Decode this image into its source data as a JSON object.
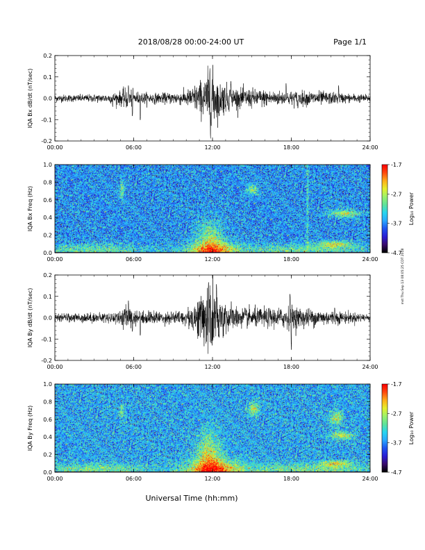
{
  "header": {
    "title": "2018/08/28  00:00-24:00 UT",
    "page": "Page 1/1"
  },
  "footer": {
    "xlabel": "Universal Time (hh:mm)",
    "side_note": "mst Thu Sep 13 08:05:25 CDT 2018"
  },
  "colors": {
    "trace": "#000000",
    "frame": "#000000",
    "colormap": [
      "#000000",
      "#3a0a6e",
      "#2a1fd6",
      "#1f55f0",
      "#2aa9ff",
      "#29d6ef",
      "#5fe39a",
      "#9cf26b",
      "#e6f02c",
      "#ffae1a",
      "#ff4a10",
      "#ff0000"
    ]
  },
  "chart_data": [
    {
      "type": "line",
      "name": "bx-dbdt",
      "ylabel": "IQA Bx dB/dt (nT/sec)",
      "xlim": [
        0,
        24
      ],
      "ylim": [
        -0.2,
        0.2
      ],
      "yticks": [
        -0.2,
        -0.1,
        0.0,
        0.1,
        0.2
      ],
      "ytick_labels": [
        "-0.2",
        "-0.1",
        "0.0",
        "0.1",
        "0.2"
      ],
      "xticks": [
        0,
        6,
        12,
        18,
        24
      ],
      "xtick_labels": [
        "00:00",
        "06:00",
        "12:00",
        "18:00",
        "24:00"
      ],
      "envelope": {
        "x": [
          0,
          2,
          4,
          5,
          5.5,
          6,
          6.5,
          8,
          10,
          10.5,
          11,
          11.5,
          11.8,
          12,
          12.5,
          13,
          14,
          15,
          16,
          17,
          18,
          19,
          20,
          21,
          22,
          24
        ],
        "y": [
          0.015,
          0.015,
          0.018,
          0.03,
          0.045,
          0.03,
          0.025,
          0.02,
          0.03,
          0.05,
          0.07,
          0.09,
          0.14,
          0.12,
          0.08,
          0.06,
          0.04,
          0.04,
          0.035,
          0.03,
          0.03,
          0.03,
          0.03,
          0.025,
          0.02,
          0.015
        ]
      },
      "spikes": [
        {
          "x": 4.4,
          "y": -0.04
        },
        {
          "x": 5.6,
          "y": 0.06
        },
        {
          "x": 5.9,
          "y": -0.09
        },
        {
          "x": 6.5,
          "y": -0.11
        },
        {
          "x": 11.8,
          "y": 0.14
        },
        {
          "x": 11.9,
          "y": -0.14
        },
        {
          "x": 12.5,
          "y": -0.09
        },
        {
          "x": 13.4,
          "y": 0.08
        },
        {
          "x": 17.6,
          "y": 0.07
        },
        {
          "x": 18.5,
          "y": -0.05
        },
        {
          "x": 21.6,
          "y": 0.06
        }
      ]
    },
    {
      "type": "heatmap",
      "name": "bx-spectrogram",
      "ylabel": "IQA Bx Freq (Hz)",
      "xlim": [
        0,
        24
      ],
      "ylim": [
        0,
        1.0
      ],
      "yticks": [
        0.0,
        0.2,
        0.4,
        0.6,
        0.8,
        1.0
      ],
      "ytick_labels": [
        "0.0",
        "0.2",
        "0.4",
        "0.6",
        "0.8",
        "1.0"
      ],
      "xticks": [
        0,
        6,
        12,
        18,
        24
      ],
      "xtick_labels": [
        "00:00",
        "06:00",
        "12:00",
        "18:00",
        "24:00"
      ],
      "colorbar": {
        "label": "Log₁₀ Power",
        "range": [
          -4.7,
          -1.7
        ],
        "ticks": [
          -1.7,
          -2.7,
          -3.7,
          -4.7
        ],
        "tick_labels": [
          "-1.7",
          "-2.7",
          "-3.7",
          "-4.7"
        ]
      },
      "background_level": 0.35,
      "features": [
        {
          "x": 12,
          "y": 0.0,
          "sx": 1.4,
          "sy": 0.08,
          "amp": 0.45
        },
        {
          "x": 11.8,
          "y": 0.15,
          "sx": 0.7,
          "sy": 0.15,
          "amp": 0.25
        },
        {
          "x": 5.1,
          "y": 0.72,
          "sx": 0.12,
          "sy": 0.07,
          "amp": 0.25
        },
        {
          "x": 15,
          "y": 0.72,
          "sx": 0.3,
          "sy": 0.04,
          "amp": 0.25
        },
        {
          "x": 22,
          "y": 0.45,
          "sx": 0.8,
          "sy": 0.03,
          "amp": 0.3
        },
        {
          "x": 21.3,
          "y": 0.1,
          "sx": 0.9,
          "sy": 0.025,
          "amp": 0.3
        },
        {
          "x": 19.2,
          "y": 0.5,
          "sx": 0.06,
          "sy": 0.5,
          "amp": 0.15
        },
        {
          "x": 3.0,
          "y": 0.03,
          "sx": 3.0,
          "sy": 0.05,
          "amp": 0.2
        },
        {
          "x": 19.0,
          "y": 0.03,
          "sx": 4.0,
          "sy": 0.05,
          "amp": 0.2
        }
      ]
    },
    {
      "type": "line",
      "name": "by-dbdt",
      "ylabel": "IQA By dB/dt (nT/sec)",
      "xlim": [
        0,
        24
      ],
      "ylim": [
        -0.2,
        0.2
      ],
      "yticks": [
        -0.2,
        -0.1,
        0.0,
        0.1,
        0.2
      ],
      "ytick_labels": [
        "-0.2",
        "-0.1",
        "0.0",
        "0.1",
        "0.2"
      ],
      "xticks": [
        0,
        6,
        12,
        18,
        24
      ],
      "xtick_labels": [
        "00:00",
        "06:00",
        "12:00",
        "18:00",
        "24:00"
      ],
      "envelope": {
        "x": [
          0,
          2,
          4,
          5,
          5.5,
          6,
          6.5,
          8,
          10,
          10.5,
          11,
          11.5,
          11.8,
          12,
          12.5,
          13,
          14,
          15,
          16,
          17,
          18,
          19,
          20,
          21,
          22,
          24
        ],
        "y": [
          0.015,
          0.02,
          0.02,
          0.03,
          0.05,
          0.03,
          0.03,
          0.025,
          0.03,
          0.06,
          0.09,
          0.12,
          0.17,
          0.15,
          0.1,
          0.07,
          0.04,
          0.04,
          0.04,
          0.04,
          0.05,
          0.04,
          0.035,
          0.03,
          0.025,
          0.015
        ]
      },
      "spikes": [
        {
          "x": 5.6,
          "y": 0.08
        },
        {
          "x": 5.9,
          "y": -0.07
        },
        {
          "x": 6.5,
          "y": -0.09
        },
        {
          "x": 11.7,
          "y": 0.18
        },
        {
          "x": 11.9,
          "y": -0.13
        },
        {
          "x": 12.3,
          "y": 0.17
        },
        {
          "x": 12.5,
          "y": -0.1
        },
        {
          "x": 17.9,
          "y": 0.12
        },
        {
          "x": 18.0,
          "y": -0.15
        },
        {
          "x": 21.3,
          "y": 0.05
        }
      ]
    },
    {
      "type": "heatmap",
      "name": "by-spectrogram",
      "ylabel": "IQA By Freq (Hz)",
      "xlim": [
        0,
        24
      ],
      "ylim": [
        0,
        1.0
      ],
      "yticks": [
        0.0,
        0.2,
        0.4,
        0.6,
        0.8,
        1.0
      ],
      "ytick_labels": [
        "0.0",
        "0.2",
        "0.4",
        "0.6",
        "0.8",
        "1.0"
      ],
      "xticks": [
        0,
        6,
        12,
        18,
        24
      ],
      "xtick_labels": [
        "00:00",
        "06:00",
        "12:00",
        "18:00",
        "24:00"
      ],
      "colorbar": {
        "label": "Log₁₀ Power",
        "range": [
          -4.7,
          -1.7
        ],
        "ticks": [
          -1.7,
          -2.7,
          -3.7,
          -4.7
        ],
        "tick_labels": [
          "-1.7",
          "-2.7",
          "-3.7",
          "-4.7"
        ]
      },
      "background_level": 0.38,
      "features": [
        {
          "x": 12,
          "y": 0.0,
          "sx": 1.4,
          "sy": 0.1,
          "amp": 0.5
        },
        {
          "x": 11.7,
          "y": 0.2,
          "sx": 0.6,
          "sy": 0.18,
          "amp": 0.28
        },
        {
          "x": 15.1,
          "y": 0.72,
          "sx": 0.3,
          "sy": 0.05,
          "amp": 0.28
        },
        {
          "x": 21.4,
          "y": 0.62,
          "sx": 0.35,
          "sy": 0.05,
          "amp": 0.28
        },
        {
          "x": 21.8,
          "y": 0.42,
          "sx": 0.6,
          "sy": 0.03,
          "amp": 0.3
        },
        {
          "x": 21.4,
          "y": 0.1,
          "sx": 0.8,
          "sy": 0.025,
          "amp": 0.3
        },
        {
          "x": 5.1,
          "y": 0.7,
          "sx": 0.12,
          "sy": 0.06,
          "amp": 0.2
        },
        {
          "x": 3.0,
          "y": 0.03,
          "sx": 3.0,
          "sy": 0.05,
          "amp": 0.2
        },
        {
          "x": 19.0,
          "y": 0.03,
          "sx": 4.0,
          "sy": 0.05,
          "amp": 0.2
        }
      ]
    }
  ]
}
